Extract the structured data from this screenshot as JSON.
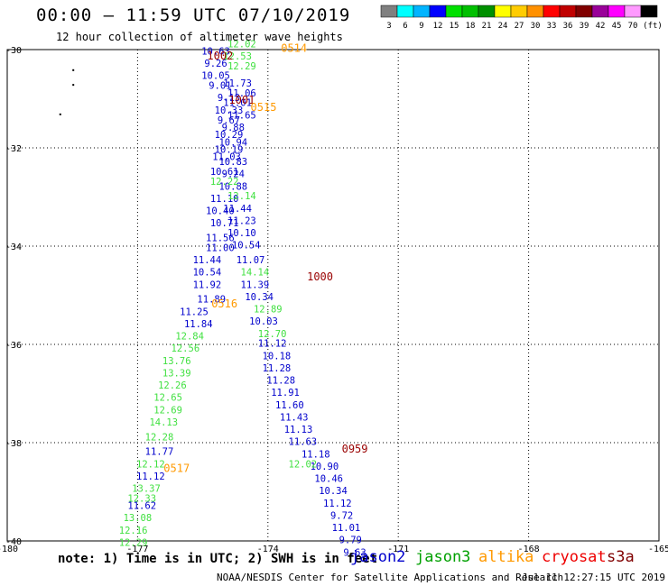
{
  "header": {
    "title": "00:00 – 11:59 UTC 07/10/2019",
    "subtitle": "12 hour collection of altimeter wave heights"
  },
  "colorbar": {
    "colors": [
      "#808080",
      "#00ffff",
      "#00b4ff",
      "#0000ff",
      "#00e000",
      "#00c000",
      "#009000",
      "#ffff00",
      "#ffcc00",
      "#ff9000",
      "#ff0000",
      "#c00000",
      "#800000",
      "#990099",
      "#ff00ff",
      "#ff99ff",
      "#000000"
    ],
    "labels": [
      "3",
      "6",
      "9",
      "12",
      "15",
      "18",
      "21",
      "24",
      "27",
      "30",
      "33",
      "36",
      "39",
      "42",
      "45",
      "70",
      "(ft)"
    ]
  },
  "footer": {
    "note": "note: 1) Time is in UTC; 2) SWH is in feet",
    "missions": [
      {
        "name": "jason2",
        "color": "#0000cc"
      },
      {
        "name": "jason3",
        "color": "#00a000"
      },
      {
        "name": "altika",
        "color": "#ff9900"
      },
      {
        "name": "cryosat",
        "color": "#ee0000"
      },
      {
        "name": "s3a",
        "color": "#800000"
      }
    ],
    "credit": "NOAA/NESDIS Center for Satellite Applications and Research",
    "timestamp": "Jul 11 12:27:15 UTC 2019"
  },
  "chart_data": {
    "type": "scatter",
    "xlim": [
      -180,
      -165
    ],
    "ylim": [
      -40,
      -30
    ],
    "x_ticks": [
      "-180",
      "-177",
      "-174",
      "-171",
      "-168",
      "-165"
    ],
    "y_ticks": [
      "-30",
      "-32",
      "-34",
      "-36",
      "-38",
      "-40"
    ],
    "grid": true,
    "series": [
      {
        "name": "jason2",
        "color": "#0000cc",
        "points": [
          [
            -175.2,
            -30.1,
            "10.63"
          ],
          [
            -175.2,
            -30.35,
            "9.26"
          ],
          [
            -175.2,
            -30.6,
            "10.05"
          ],
          [
            -175.1,
            -30.8,
            "9.01"
          ],
          [
            -174.7,
            -30.75,
            "11.73"
          ],
          [
            -174.9,
            -31.05,
            "9.13"
          ],
          [
            -174.6,
            -30.95,
            "11.06"
          ],
          [
            -174.7,
            -31.15,
            "11.01"
          ],
          [
            -174.9,
            -31.3,
            "10.33"
          ],
          [
            -174.6,
            -31.4,
            "11.65"
          ],
          [
            -174.9,
            -31.5,
            "9.67"
          ],
          [
            -174.8,
            -31.65,
            "9.88"
          ],
          [
            -174.9,
            -31.8,
            "10.29"
          ],
          [
            -174.8,
            -31.95,
            "10.94"
          ],
          [
            -174.9,
            -32.1,
            "10.19"
          ],
          [
            -174.95,
            -32.25,
            "11.03"
          ],
          [
            -174.8,
            -32.35,
            "10.83"
          ],
          [
            -175.0,
            -32.55,
            "10.61"
          ],
          [
            -174.8,
            -32.6,
            "9.24"
          ],
          [
            -174.8,
            -32.85,
            "10.88"
          ],
          [
            -175.0,
            -33.1,
            "11.10"
          ],
          [
            -175.1,
            -33.35,
            "10.40"
          ],
          [
            -174.7,
            -33.3,
            "11.44"
          ],
          [
            -175.0,
            -33.6,
            "10.71"
          ],
          [
            -174.6,
            -33.55,
            "11.23"
          ],
          [
            -175.1,
            -33.9,
            "11.56"
          ],
          [
            -174.6,
            -33.8,
            "10.10"
          ],
          [
            -175.1,
            -34.1,
            "11.00"
          ],
          [
            -174.5,
            -34.05,
            "10.54"
          ],
          [
            -175.4,
            -34.35,
            "11.44"
          ],
          [
            -174.4,
            -34.35,
            "11.07"
          ],
          [
            -175.4,
            -34.6,
            "10.54"
          ],
          [
            -175.4,
            -34.85,
            "11.92"
          ],
          [
            -174.3,
            -34.85,
            "11.39"
          ],
          [
            -174.2,
            -35.1,
            "10.34"
          ],
          [
            -175.3,
            -35.15,
            "11.89"
          ],
          [
            -175.7,
            -35.4,
            "11.25"
          ],
          [
            -174.1,
            -35.6,
            "10.03"
          ],
          [
            -175.6,
            -35.65,
            "11.84"
          ],
          [
            -173.9,
            -36.05,
            "11.12"
          ],
          [
            -173.8,
            -36.3,
            "10.18"
          ],
          [
            -173.8,
            -36.55,
            "11.28"
          ],
          [
            -173.7,
            -36.8,
            "11.28"
          ],
          [
            -173.6,
            -37.05,
            "11.91"
          ],
          [
            -173.5,
            -37.3,
            "11.60"
          ],
          [
            -173.4,
            -37.55,
            "11.43"
          ],
          [
            -173.3,
            -37.8,
            "11.13"
          ],
          [
            -173.2,
            -38.05,
            "11.63"
          ],
          [
            -172.9,
            -38.3,
            "11.18"
          ],
          [
            -176.5,
            -38.25,
            "11.77"
          ],
          [
            -172.7,
            -38.55,
            "10.90"
          ],
          [
            -176.7,
            -38.75,
            "11.12"
          ],
          [
            -172.6,
            -38.8,
            "10.46"
          ],
          [
            -172.5,
            -39.05,
            "10.34"
          ],
          [
            -172.4,
            -39.3,
            "11.12"
          ],
          [
            -176.9,
            -39.35,
            "11.62"
          ],
          [
            -172.3,
            -39.55,
            "9.72"
          ],
          [
            -172.2,
            -39.8,
            "11.01"
          ],
          [
            -172.1,
            -40.05,
            "9.79"
          ],
          [
            -172.0,
            -40.3,
            "9.63"
          ]
        ]
      },
      {
        "name": "jason3",
        "color": "#40e040",
        "points": [
          [
            -174.6,
            -29.95,
            "12.02"
          ],
          [
            -174.7,
            -30.2,
            "12.53"
          ],
          [
            -174.6,
            -30.4,
            "12.29"
          ],
          [
            -175.0,
            -32.75,
            "12.22"
          ],
          [
            -174.6,
            -33.05,
            "12.14"
          ],
          [
            -174.3,
            -34.6,
            "14.14"
          ],
          [
            -174.0,
            -35.35,
            "12.89"
          ],
          [
            -173.9,
            -35.85,
            "12.70"
          ],
          [
            -175.8,
            -35.9,
            "12.84"
          ],
          [
            -175.9,
            -36.15,
            "12.56"
          ],
          [
            -176.1,
            -36.4,
            "13.76"
          ],
          [
            -176.1,
            -36.65,
            "13.39"
          ],
          [
            -176.2,
            -36.9,
            "12.26"
          ],
          [
            -176.3,
            -37.15,
            "12.65"
          ],
          [
            -176.3,
            -37.4,
            "12.69"
          ],
          [
            -176.4,
            -37.65,
            "14.13"
          ],
          [
            -176.5,
            -37.95,
            "12.28"
          ],
          [
            -173.2,
            -38.5,
            "12.02"
          ],
          [
            -176.7,
            -38.5,
            "12.12"
          ],
          [
            -176.8,
            -39.0,
            "13.37"
          ],
          [
            -176.9,
            -39.2,
            "12.33"
          ],
          [
            -177.0,
            -39.6,
            "13.08"
          ],
          [
            -177.1,
            -39.85,
            "12.16"
          ],
          [
            -177.1,
            -40.1,
            "12.29"
          ]
        ]
      }
    ],
    "labels": [
      {
        "x": -175.1,
        "y": -30.2,
        "text": "1002",
        "color": "#990000"
      },
      {
        "x": -173.4,
        "y": -30.05,
        "text": "0514",
        "color": "#ff9900"
      },
      {
        "x": -174.6,
        "y": -31.1,
        "text": "1001",
        "color": "#990000"
      },
      {
        "x": -174.1,
        "y": -31.25,
        "text": "0515",
        "color": "#ff9900"
      },
      {
        "x": -172.8,
        "y": -34.7,
        "text": "1000",
        "color": "#990000"
      },
      {
        "x": -175.0,
        "y": -35.25,
        "text": "0516",
        "color": "#ff9900"
      },
      {
        "x": -172.0,
        "y": -38.2,
        "text": "0959",
        "color": "#990000"
      },
      {
        "x": -176.1,
        "y": -38.6,
        "text": "0517",
        "color": "#ff9900"
      }
    ],
    "land_dots": [
      [
        -178.5,
        -30.4
      ],
      [
        -178.5,
        -30.7
      ],
      [
        -178.8,
        -31.3
      ]
    ]
  }
}
